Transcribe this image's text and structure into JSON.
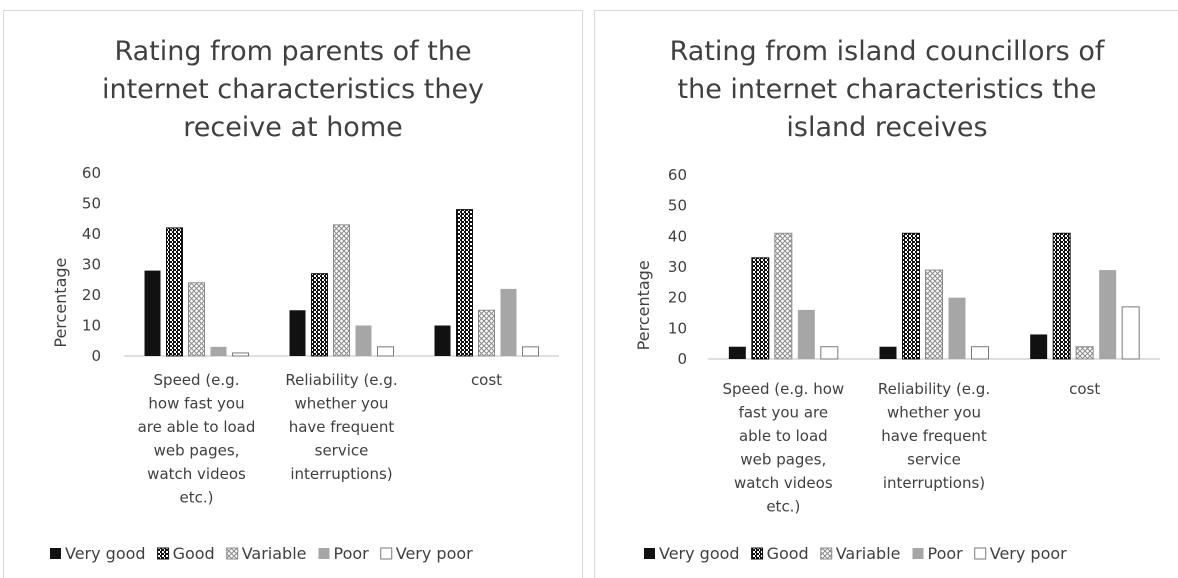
{
  "colors": {
    "Very good": "#111111",
    "Good": "#111111",
    "Variable": "#9a9a9a",
    "Poor": "#a6a6a6",
    "Very poor": "#ffffff"
  },
  "chart_data": [
    {
      "type": "bar",
      "title_lines": [
        "Rating from parents of the",
        "internet characteristics they",
        "receive at home"
      ],
      "ylabel": "Percentage",
      "ylim": [
        0,
        60
      ],
      "yticks": [
        "0",
        "10",
        "20",
        "30",
        "40",
        "50",
        "60"
      ],
      "categories": [
        [
          "Speed (e.g.",
          "how fast you",
          "are able to load",
          "web pages,",
          "watch videos",
          "etc.)"
        ],
        [
          "Reliability (e.g.",
          "whether you",
          "have frequent",
          "service",
          "interruptions)"
        ],
        [
          "cost"
        ]
      ],
      "legend_position": "bottom",
      "series": [
        {
          "name": "Very good",
          "values": [
            28,
            15,
            10
          ]
        },
        {
          "name": "Good",
          "values": [
            42,
            27,
            48
          ]
        },
        {
          "name": "Variable",
          "values": [
            24,
            43,
            15
          ]
        },
        {
          "name": "Poor",
          "values": [
            3,
            10,
            22
          ]
        },
        {
          "name": "Very poor",
          "values": [
            1,
            3,
            3
          ]
        }
      ]
    },
    {
      "type": "bar",
      "title_lines": [
        "Rating from island councillors of",
        "the internet characteristics the",
        "island receives"
      ],
      "ylabel": "Percentage",
      "ylim": [
        0,
        60
      ],
      "yticks": [
        "0",
        "10",
        "20",
        "30",
        "40",
        "50",
        "60"
      ],
      "categories": [
        [
          "Speed (e.g. how",
          "fast you are",
          "able to load",
          "web pages,",
          "watch videos",
          "etc.)"
        ],
        [
          "Reliability (e.g.",
          "whether you",
          "have frequent",
          "service",
          "interruptions)"
        ],
        [
          "cost"
        ]
      ],
      "legend_position": "bottom",
      "series": [
        {
          "name": "Very good",
          "values": [
            4,
            4,
            8
          ]
        },
        {
          "name": "Good",
          "values": [
            33,
            41,
            41
          ]
        },
        {
          "name": "Variable",
          "values": [
            41,
            29,
            4
          ]
        },
        {
          "name": "Poor",
          "values": [
            16,
            20,
            29
          ]
        },
        {
          "name": "Very poor",
          "values": [
            4,
            4,
            17
          ]
        }
      ]
    }
  ]
}
